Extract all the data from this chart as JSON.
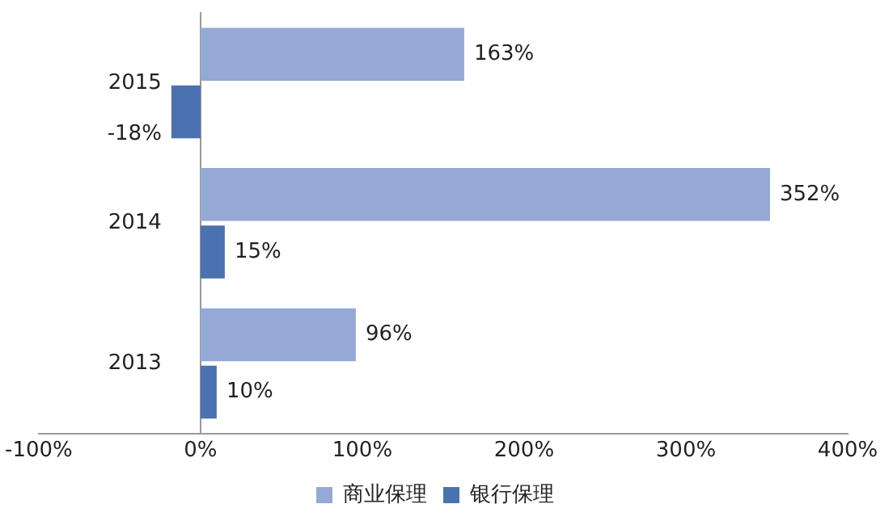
{
  "chart_data": {
    "type": "bar",
    "orientation": "horizontal",
    "categories": [
      "2015",
      "2014",
      "2013"
    ],
    "series": [
      {
        "name": "商业保理",
        "color": "#95a9d6",
        "values": [
          163,
          352,
          96
        ],
        "value_labels": [
          "163%",
          "352%",
          "96%"
        ]
      },
      {
        "name": "银行保理",
        "color": "#4a72b0",
        "values": [
          -18,
          15,
          10
        ],
        "value_labels": [
          "-18%",
          "15%",
          "10%"
        ]
      }
    ],
    "xlim": [
      -100,
      400
    ],
    "xticks": [
      {
        "value": -100,
        "label": "-100%"
      },
      {
        "value": 0,
        "label": "0%"
      },
      {
        "value": 100,
        "label": "100%"
      },
      {
        "value": 200,
        "label": "200%"
      },
      {
        "value": 300,
        "label": "300%"
      },
      {
        "value": 400,
        "label": "400%"
      }
    ],
    "grid": false,
    "legend": "bottom"
  }
}
